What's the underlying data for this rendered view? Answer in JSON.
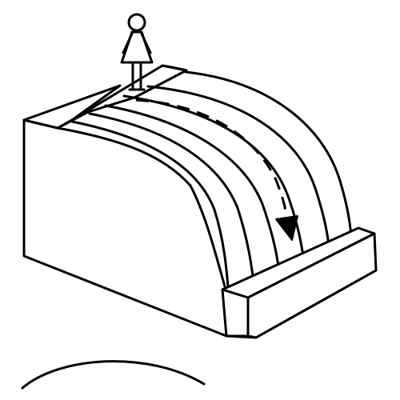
{
  "diagram": {
    "subject": "person-at-top-of-curved-slide",
    "slide_lanes": 6,
    "stroke_color": "#000000",
    "background_color": "#ffffff",
    "icons": [
      "person-icon",
      "arrow-down-icon"
    ]
  }
}
